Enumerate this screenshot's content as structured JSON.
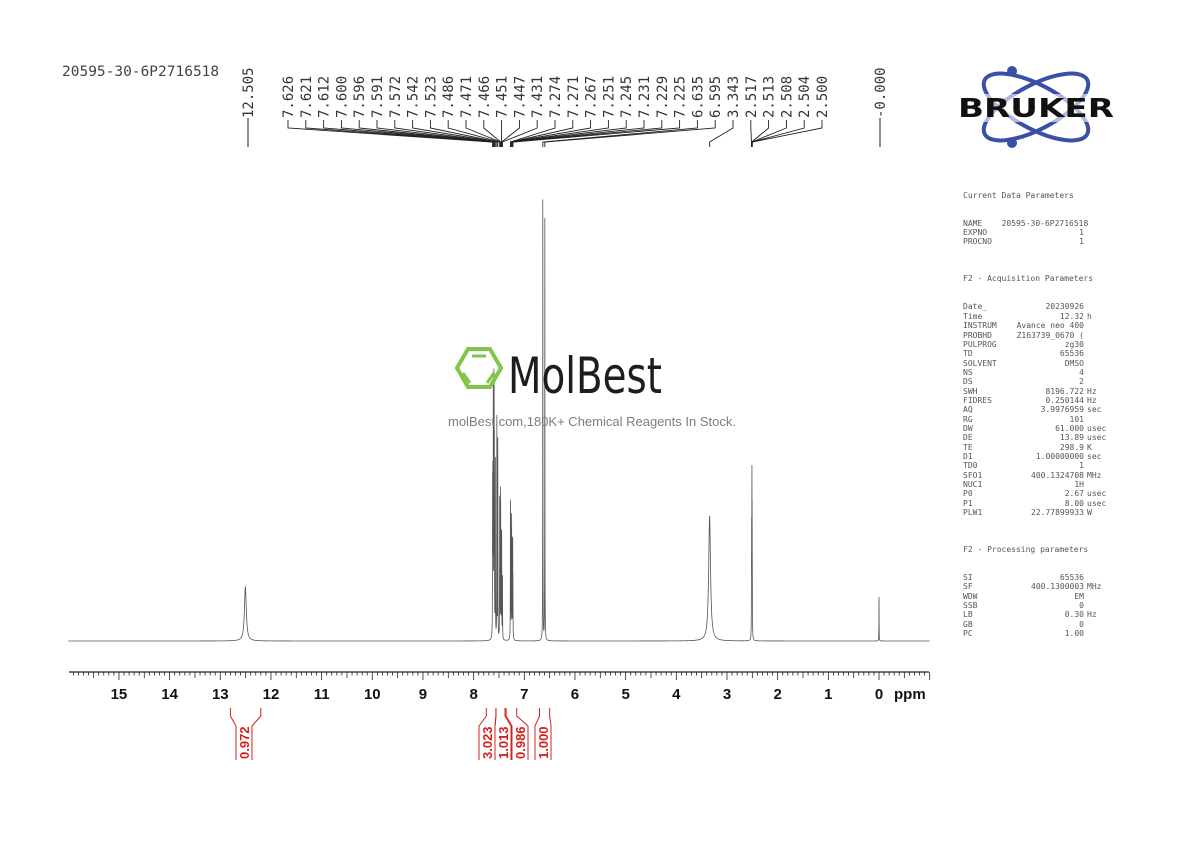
{
  "header": {
    "sample_name": "20595-30-6P2716518"
  },
  "watermark": {
    "brand": "MolBest",
    "tagline": "molBest.com,180K+ Chemical Reagents In Stock.",
    "color": "#7dc242"
  },
  "logo": {
    "text": "BRUKER",
    "orbit_color": "#3a4fa8"
  },
  "parameters": {
    "current_title": "Current Data Parameters",
    "current": [
      {
        "k": "NAME",
        "v": "20595-30-6P2716518",
        "u": ""
      },
      {
        "k": "EXPNO",
        "v": "1",
        "u": ""
      },
      {
        "k": "PROCNO",
        "v": "1",
        "u": ""
      }
    ],
    "acq_title": "F2 - Acquisition Parameters",
    "acq": [
      {
        "k": "Date_",
        "v": "20230926",
        "u": ""
      },
      {
        "k": "Time",
        "v": "12.32",
        "u": "h"
      },
      {
        "k": "INSTRUM",
        "v": "Avance neo 400",
        "u": ""
      },
      {
        "k": "PROBHD",
        "v": "Z163739_0670 (",
        "u": ""
      },
      {
        "k": "PULPROG",
        "v": "zg30",
        "u": ""
      },
      {
        "k": "TD",
        "v": "65536",
        "u": ""
      },
      {
        "k": "SOLVENT",
        "v": "DMSO",
        "u": ""
      },
      {
        "k": "NS",
        "v": "4",
        "u": ""
      },
      {
        "k": "DS",
        "v": "2",
        "u": ""
      },
      {
        "k": "SWH",
        "v": "8196.722",
        "u": "Hz"
      },
      {
        "k": "FIDRES",
        "v": "0.250144",
        "u": "Hz"
      },
      {
        "k": "AQ",
        "v": "3.9976959",
        "u": "sec"
      },
      {
        "k": "RG",
        "v": "101",
        "u": ""
      },
      {
        "k": "DW",
        "v": "61.000",
        "u": "usec"
      },
      {
        "k": "DE",
        "v": "13.89",
        "u": "usec"
      },
      {
        "k": "TE",
        "v": "298.9",
        "u": "K"
      },
      {
        "k": "D1",
        "v": "1.00000000",
        "u": "sec"
      },
      {
        "k": "TD0",
        "v": "1",
        "u": ""
      },
      {
        "k": "SFO1",
        "v": "400.1324708",
        "u": "MHz"
      },
      {
        "k": "NUC1",
        "v": "1H",
        "u": ""
      },
      {
        "k": "P0",
        "v": "2.67",
        "u": "usec"
      },
      {
        "k": "P1",
        "v": "8.00",
        "u": "usec"
      },
      {
        "k": "PLW1",
        "v": "22.77899933",
        "u": "W"
      }
    ],
    "proc_title": "F2 - Processing parameters",
    "proc": [
      {
        "k": "SI",
        "v": "65536",
        "u": ""
      },
      {
        "k": "SF",
        "v": "400.1300003",
        "u": "MHz"
      },
      {
        "k": "WDW",
        "v": "EM",
        "u": ""
      },
      {
        "k": "SSB",
        "v": "0",
        "u": ""
      },
      {
        "k": "LB",
        "v": "0.30",
        "u": "Hz"
      },
      {
        "k": "GB",
        "v": "0",
        "u": ""
      },
      {
        "k": "PC",
        "v": "1.00",
        "u": ""
      }
    ]
  },
  "chart_data": {
    "type": "line",
    "xlabel": "ppm",
    "xlim": [
      16,
      -1
    ],
    "x_reversed": true,
    "x_ticks": [
      "15",
      "14",
      "13",
      "12",
      "11",
      "10",
      "9",
      "8",
      "7",
      "6",
      "5",
      "4",
      "3",
      "2",
      "1",
      "0"
    ],
    "grid": false,
    "line_color": "#555555",
    "integral_color": "#d42020",
    "peak_labels": [
      "12.505",
      "7.626",
      "7.621",
      "7.612",
      "7.600",
      "7.596",
      "7.591",
      "7.572",
      "7.542",
      "7.523",
      "7.486",
      "7.471",
      "7.466",
      "7.451",
      "7.447",
      "7.431",
      "7.274",
      "7.271",
      "7.267",
      "7.251",
      "7.245",
      "7.231",
      "7.229",
      "7.225",
      "6.635",
      "6.595",
      "3.343",
      "2.517",
      "2.513",
      "2.508",
      "2.504",
      "2.500",
      "-0.000"
    ],
    "peaks": [
      {
        "ppm": 12.505,
        "intensity": 11.7
      },
      {
        "ppm": 7.626,
        "intensity": 30
      },
      {
        "ppm": 7.621,
        "intensity": 30
      },
      {
        "ppm": 7.612,
        "intensity": 50
      },
      {
        "ppm": 7.6,
        "intensity": 45
      },
      {
        "ppm": 7.596,
        "intensity": 40
      },
      {
        "ppm": 7.591,
        "intensity": 35
      },
      {
        "ppm": 7.572,
        "intensity": 40
      },
      {
        "ppm": 7.542,
        "intensity": 50
      },
      {
        "ppm": 7.523,
        "intensity": 45
      },
      {
        "ppm": 7.486,
        "intensity": 30
      },
      {
        "ppm": 7.471,
        "intensity": 28
      },
      {
        "ppm": 7.466,
        "intensity": 25
      },
      {
        "ppm": 7.451,
        "intensity": 20
      },
      {
        "ppm": 7.447,
        "intensity": 18
      },
      {
        "ppm": 7.431,
        "intensity": 14
      },
      {
        "ppm": 7.274,
        "intensity": 18
      },
      {
        "ppm": 7.271,
        "intensity": 20
      },
      {
        "ppm": 7.267,
        "intensity": 16
      },
      {
        "ppm": 7.251,
        "intensity": 25
      },
      {
        "ppm": 7.245,
        "intensity": 20
      },
      {
        "ppm": 7.231,
        "intensity": 12
      },
      {
        "ppm": 7.229,
        "intensity": 12
      },
      {
        "ppm": 7.225,
        "intensity": 10
      },
      {
        "ppm": 6.635,
        "intensity": 100
      },
      {
        "ppm": 6.595,
        "intensity": 91
      },
      {
        "ppm": 3.343,
        "intensity": 27
      },
      {
        "ppm": 2.517,
        "intensity": 8
      },
      {
        "ppm": 2.513,
        "intensity": 20
      },
      {
        "ppm": 2.508,
        "intensity": 30
      },
      {
        "ppm": 2.504,
        "intensity": 20
      },
      {
        "ppm": 2.5,
        "intensity": 8
      },
      {
        "ppm": 0.0,
        "intensity": 10
      }
    ],
    "integrals": [
      {
        "from": 12.8,
        "to": 12.2,
        "value": "0.972"
      },
      {
        "from": 7.75,
        "to": 7.56,
        "value": "3.023"
      },
      {
        "from": 7.56,
        "to": 7.38,
        "value": "1.013"
      },
      {
        "from": 7.36,
        "to": 7.15,
        "value": "0.986"
      },
      {
        "from": 6.7,
        "to": 6.5,
        "value": "1.000"
      }
    ]
  }
}
